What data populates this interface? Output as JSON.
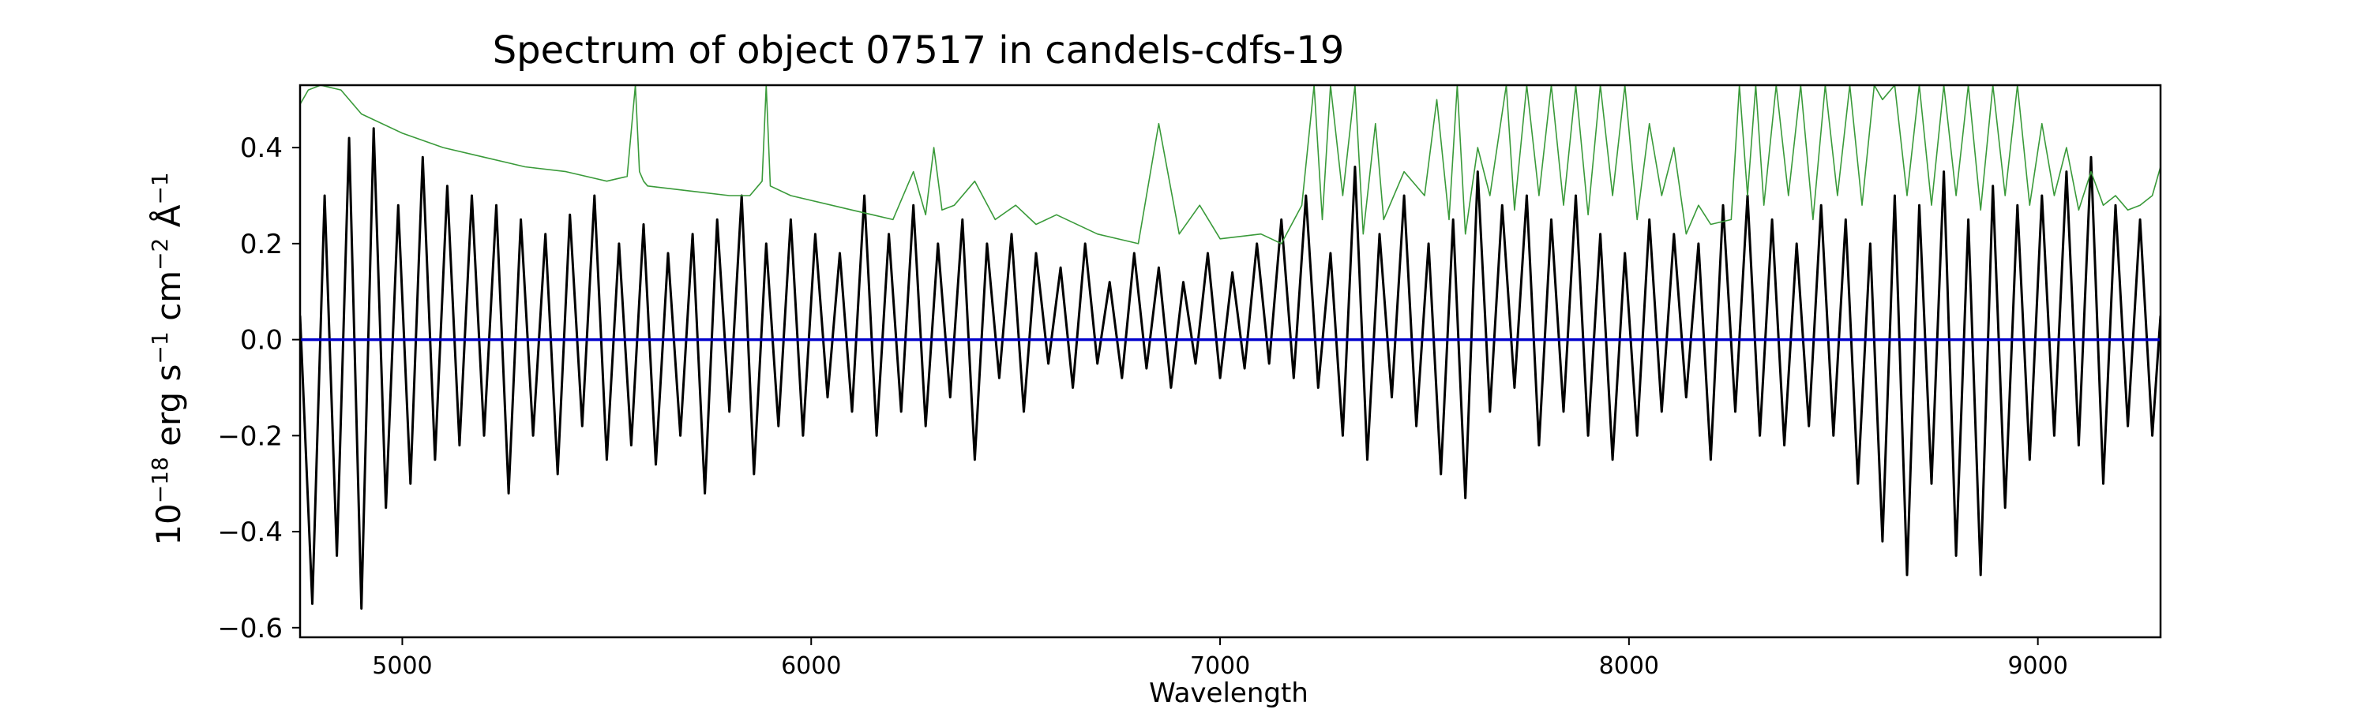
{
  "chart_data": {
    "type": "line",
    "title": "Spectrum of object 07517 in candels-cdfs-19",
    "xlabel": "Wavelength",
    "ylabel": {
      "base": "10",
      "exp_base": "−18",
      "erg": " erg s",
      "exp_s": "−1",
      "cm": " cm",
      "exp_cm": "−2",
      "ang": " Å",
      "exp_ang": "−1"
    },
    "xlim": [
      4750,
      9300
    ],
    "ylim": [
      -0.62,
      0.53
    ],
    "x_ticks": [
      5000,
      6000,
      7000,
      8000,
      9000
    ],
    "x_tick_labels": [
      "5000",
      "6000",
      "7000",
      "8000",
      "9000"
    ],
    "y_ticks": [
      0.4,
      0.2,
      0.0,
      -0.2,
      -0.4,
      -0.6
    ],
    "y_tick_labels": [
      "0.4",
      "0.2",
      "0.0",
      "−0.2",
      "−0.4",
      "−0.6"
    ],
    "grid": false,
    "legend": null,
    "series": [
      {
        "role": "flux",
        "color": "#000000",
        "x": [
          4750,
          4780,
          4810,
          4840,
          4870,
          4900,
          4930,
          4960,
          4990,
          5020,
          5050,
          5080,
          5110,
          5140,
          5170,
          5200,
          5230,
          5260,
          5290,
          5320,
          5350,
          5380,
          5410,
          5440,
          5470,
          5500,
          5530,
          5560,
          5590,
          5620,
          5650,
          5680,
          5710,
          5740,
          5770,
          5800,
          5830,
          5860,
          5890,
          5920,
          5950,
          5980,
          6010,
          6040,
          6070,
          6100,
          6130,
          6160,
          6190,
          6220,
          6250,
          6280,
          6310,
          6340,
          6370,
          6400,
          6430,
          6460,
          6490,
          6520,
          6550,
          6580,
          6610,
          6640,
          6670,
          6700,
          6730,
          6760,
          6790,
          6820,
          6850,
          6880,
          6910,
          6940,
          6970,
          7000,
          7030,
          7060,
          7090,
          7120,
          7150,
          7180,
          7210,
          7240,
          7270,
          7300,
          7330,
          7360,
          7390,
          7420,
          7450,
          7480,
          7510,
          7540,
          7570,
          7600,
          7630,
          7660,
          7690,
          7720,
          7750,
          7780,
          7810,
          7840,
          7870,
          7900,
          7930,
          7960,
          7990,
          8020,
          8050,
          8080,
          8110,
          8140,
          8170,
          8200,
          8230,
          8260,
          8290,
          8320,
          8350,
          8380,
          8410,
          8440,
          8470,
          8500,
          8530,
          8560,
          8590,
          8620,
          8650,
          8680,
          8710,
          8740,
          8770,
          8800,
          8830,
          8860,
          8890,
          8920,
          8950,
          8980,
          9010,
          9040,
          9070,
          9100,
          9130,
          9160,
          9190,
          9220,
          9250,
          9280,
          9300
        ],
        "y": [
          0.05,
          -0.55,
          0.3,
          -0.45,
          0.42,
          -0.56,
          0.44,
          -0.35,
          0.28,
          -0.3,
          0.38,
          -0.25,
          0.32,
          -0.22,
          0.3,
          -0.2,
          0.28,
          -0.32,
          0.25,
          -0.2,
          0.22,
          -0.28,
          0.26,
          -0.18,
          0.3,
          -0.25,
          0.2,
          -0.22,
          0.24,
          -0.26,
          0.18,
          -0.2,
          0.22,
          -0.32,
          0.25,
          -0.15,
          0.3,
          -0.28,
          0.2,
          -0.18,
          0.25,
          -0.2,
          0.22,
          -0.12,
          0.18,
          -0.15,
          0.3,
          -0.2,
          0.22,
          -0.15,
          0.28,
          -0.18,
          0.2,
          -0.12,
          0.25,
          -0.25,
          0.2,
          -0.08,
          0.22,
          -0.15,
          0.18,
          -0.05,
          0.15,
          -0.1,
          0.2,
          -0.05,
          0.12,
          -0.08,
          0.18,
          -0.06,
          0.15,
          -0.1,
          0.12,
          -0.05,
          0.18,
          -0.08,
          0.14,
          -0.06,
          0.2,
          -0.05,
          0.25,
          -0.08,
          0.3,
          -0.1,
          0.18,
          -0.2,
          0.36,
          -0.25,
          0.22,
          -0.12,
          0.3,
          -0.18,
          0.2,
          -0.28,
          0.25,
          -0.33,
          0.35,
          -0.15,
          0.28,
          -0.1,
          0.3,
          -0.22,
          0.25,
          -0.15,
          0.3,
          -0.2,
          0.22,
          -0.25,
          0.18,
          -0.2,
          0.25,
          -0.15,
          0.22,
          -0.12,
          0.2,
          -0.25,
          0.28,
          -0.15,
          0.3,
          -0.2,
          0.25,
          -0.22,
          0.2,
          -0.18,
          0.28,
          -0.2,
          0.25,
          -0.3,
          0.2,
          -0.42,
          0.3,
          -0.49,
          0.28,
          -0.3,
          0.35,
          -0.45,
          0.25,
          -0.49,
          0.32,
          -0.35,
          0.28,
          -0.25,
          0.3,
          -0.2,
          0.35,
          -0.22,
          0.38,
          -0.3,
          0.28,
          -0.18,
          0.25,
          -0.2,
          0.05
        ]
      },
      {
        "role": "error",
        "color": "#3a9a3a",
        "x": [
          4750,
          4770,
          4800,
          4850,
          4900,
          5000,
          5100,
          5200,
          5300,
          5400,
          5500,
          5550,
          5570,
          5580,
          5590,
          5600,
          5700,
          5800,
          5850,
          5880,
          5890,
          5900,
          5950,
          6000,
          6100,
          6150,
          6200,
          6250,
          6280,
          6300,
          6320,
          6350,
          6400,
          6450,
          6500,
          6550,
          6600,
          6700,
          6800,
          6850,
          6900,
          6950,
          7000,
          7100,
          7150,
          7200,
          7230,
          7250,
          7270,
          7300,
          7330,
          7350,
          7380,
          7400,
          7450,
          7500,
          7530,
          7560,
          7580,
          7600,
          7630,
          7660,
          7700,
          7720,
          7750,
          7780,
          7810,
          7840,
          7870,
          7900,
          7930,
          7960,
          7990,
          8020,
          8050,
          8080,
          8110,
          8140,
          8170,
          8200,
          8250,
          8270,
          8290,
          8310,
          8330,
          8360,
          8390,
          8420,
          8450,
          8480,
          8510,
          8540,
          8570,
          8600,
          8620,
          8650,
          8680,
          8710,
          8740,
          8770,
          8800,
          8830,
          8860,
          8890,
          8920,
          8950,
          8980,
          9010,
          9040,
          9070,
          9100,
          9130,
          9160,
          9190,
          9220,
          9250,
          9280,
          9300
        ],
        "y": [
          0.49,
          0.52,
          0.53,
          0.52,
          0.47,
          0.43,
          0.4,
          0.38,
          0.36,
          0.35,
          0.33,
          0.34,
          0.53,
          0.35,
          0.33,
          0.32,
          0.31,
          0.3,
          0.3,
          0.33,
          0.53,
          0.32,
          0.3,
          0.29,
          0.27,
          0.26,
          0.25,
          0.35,
          0.26,
          0.4,
          0.27,
          0.28,
          0.33,
          0.25,
          0.28,
          0.24,
          0.26,
          0.22,
          0.2,
          0.45,
          0.22,
          0.28,
          0.21,
          0.22,
          0.2,
          0.28,
          0.53,
          0.25,
          0.53,
          0.3,
          0.53,
          0.22,
          0.45,
          0.25,
          0.35,
          0.3,
          0.5,
          0.25,
          0.53,
          0.22,
          0.4,
          0.3,
          0.53,
          0.27,
          0.53,
          0.3,
          0.53,
          0.28,
          0.53,
          0.26,
          0.53,
          0.3,
          0.53,
          0.25,
          0.45,
          0.3,
          0.4,
          0.22,
          0.28,
          0.24,
          0.25,
          0.53,
          0.3,
          0.53,
          0.28,
          0.53,
          0.3,
          0.53,
          0.25,
          0.53,
          0.3,
          0.53,
          0.28,
          0.53,
          0.5,
          0.53,
          0.3,
          0.53,
          0.28,
          0.53,
          0.3,
          0.53,
          0.27,
          0.53,
          0.3,
          0.53,
          0.28,
          0.45,
          0.3,
          0.4,
          0.27,
          0.35,
          0.28,
          0.3,
          0.27,
          0.28,
          0.3,
          0.36
        ]
      },
      {
        "role": "zero",
        "color": "#0000cc",
        "x": [
          4750,
          9300
        ],
        "y": [
          0.0,
          0.0
        ]
      }
    ]
  }
}
